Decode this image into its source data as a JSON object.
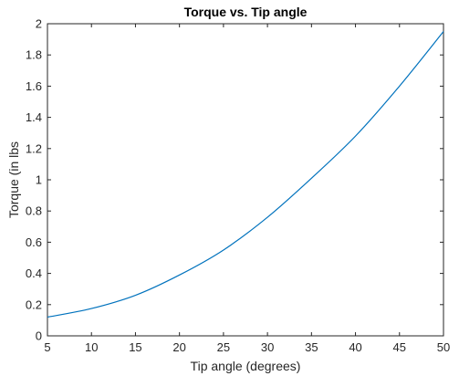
{
  "chart_data": {
    "type": "line",
    "title": "Torque vs. Tip angle",
    "xlabel": "Tip angle (degrees)",
    "ylabel": "Torque (in lbs",
    "xlim": [
      5,
      50
    ],
    "ylim": [
      0,
      2
    ],
    "grid": false,
    "x_ticks": [
      "5",
      "10",
      "15",
      "20",
      "25",
      "30",
      "35",
      "40",
      "45",
      "50"
    ],
    "y_ticks": [
      "0",
      "0.2",
      "0.4",
      "0.6",
      "0.8",
      "1",
      "1.2",
      "1.4",
      "1.6",
      "1.8",
      "2"
    ],
    "series": [
      {
        "color": "#0072bd",
        "x": [
          5,
          10,
          15,
          20,
          25,
          30,
          35,
          40,
          45,
          50
        ],
        "y": [
          0.12,
          0.175,
          0.26,
          0.39,
          0.55,
          0.76,
          1.01,
          1.28,
          1.6,
          1.95
        ]
      }
    ]
  }
}
